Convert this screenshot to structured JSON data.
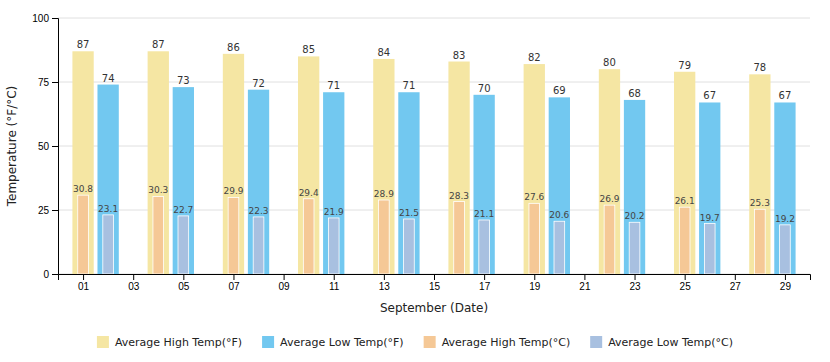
{
  "chart_data": {
    "type": "bar",
    "xlabel": "September (Date)",
    "ylabel": "Temperature (°F/°C)",
    "xlim": [
      0,
      30
    ],
    "xticks": [
      {
        "value": 1,
        "label": "01"
      },
      {
        "value": 3,
        "label": "03"
      },
      {
        "value": 5,
        "label": "05"
      },
      {
        "value": 7,
        "label": "07"
      },
      {
        "value": 9,
        "label": "09"
      },
      {
        "value": 11,
        "label": "11"
      },
      {
        "value": 13,
        "label": "13"
      },
      {
        "value": 15,
        "label": "15"
      },
      {
        "value": 17,
        "label": "17"
      },
      {
        "value": 19,
        "label": "19"
      },
      {
        "value": 21,
        "label": "21"
      },
      {
        "value": 23,
        "label": "23"
      },
      {
        "value": 25,
        "label": "25"
      },
      {
        "value": 27,
        "label": "27"
      },
      {
        "value": 29,
        "label": "29"
      }
    ],
    "ylim": [
      0,
      100
    ],
    "yticks": [
      0,
      25,
      50,
      75,
      100
    ],
    "grid": true,
    "legend": "bottom",
    "data_labels": true,
    "series": [
      {
        "name": "Average High Temp(°F)",
        "color": "#F5E6A3",
        "x": [
          1,
          4,
          7,
          10,
          13,
          16,
          19,
          22,
          25,
          28
        ],
        "values": [
          87,
          87,
          86,
          85,
          84,
          83,
          82,
          80,
          79,
          78
        ]
      },
      {
        "name": "Average Low Temp(°F)",
        "color": "#72C8F0",
        "x": [
          2,
          5,
          8,
          11,
          14,
          17,
          20,
          23,
          26,
          29
        ],
        "values": [
          74,
          73,
          72,
          71,
          71,
          70,
          69,
          68,
          67,
          67
        ]
      },
      {
        "name": "Average High Temp(°C)",
        "color": "#F5C896",
        "x": [
          1,
          4,
          7,
          10,
          13,
          16,
          19,
          22,
          25,
          28
        ],
        "values": [
          30.8,
          30.3,
          29.9,
          29.4,
          28.9,
          28.3,
          27.6,
          26.9,
          26.1,
          25.3
        ]
      },
      {
        "name": "Average Low Temp(°C)",
        "color": "#A8C0E0",
        "x": [
          2,
          5,
          8,
          11,
          14,
          17,
          20,
          23,
          26,
          29
        ],
        "values": [
          23.1,
          22.7,
          22.3,
          21.9,
          21.5,
          21.1,
          20.6,
          20.2,
          19.7,
          19.2
        ]
      }
    ]
  }
}
